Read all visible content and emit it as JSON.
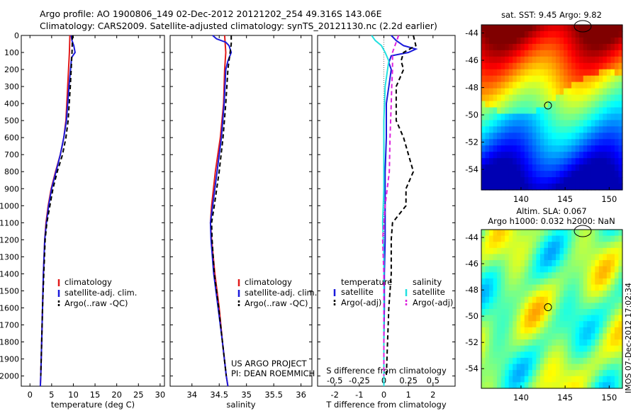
{
  "header": {
    "line1": "Argo profile: AO 1900806_149 02-Dec-2012 20121202_254 49.316S 143.06E",
    "line2": "Climatology: CARS2009. Satellite-adjusted climatology: synTS_20121130.nc (2.2d earlier)"
  },
  "credit": {
    "line1": "US ARGO PROJECT",
    "line2": "PI: DEAN ROEMMICH"
  },
  "side_stamp": "IMOS 07-Dec-2012 17:02:34",
  "colors": {
    "climatology": "#e11a1a",
    "satellite": "#1a1adb",
    "argo": "#000000",
    "satellite_salinity": "#22e0e0",
    "argo_salinity": "#dd22dd"
  },
  "chart_data": [
    {
      "type": "line",
      "xlabel": "temperature (deg C)",
      "ylabel": "",
      "xlim": [
        -2,
        31
      ],
      "ylim": [
        2060,
        0
      ],
      "xticks": [
        "0",
        "5",
        "10",
        "15",
        "20",
        "25",
        "30"
      ],
      "yticks": [
        "0",
        "100",
        "200",
        "300",
        "400",
        "500",
        "600",
        "700",
        "800",
        "900",
        "1000",
        "1100",
        "1200",
        "1300",
        "1400",
        "1500",
        "1600",
        "1700",
        "1800",
        "1900",
        "2000"
      ],
      "legend": [
        "climatology",
        "satellite-adj. clim.",
        "Argo(..raw -QC)"
      ],
      "legend_position": "lower-right",
      "series": [
        {
          "name": "climatology",
          "color": "#e11a1a",
          "style": "solid",
          "depth": [
            0,
            100,
            300,
            500,
            600,
            700,
            800,
            900,
            1000,
            1100,
            1200,
            1400,
            1600,
            1800,
            2000,
            2060
          ],
          "values": [
            9.2,
            9.1,
            8.7,
            8.3,
            7.8,
            7.0,
            5.9,
            4.9,
            4.2,
            3.7,
            3.4,
            3.1,
            2.9,
            2.7,
            2.5,
            2.4
          ]
        },
        {
          "name": "satellite-adj. clim.",
          "color": "#1a1adb",
          "style": "solid",
          "depth": [
            0,
            30,
            60,
            100,
            130,
            300,
            500,
            600,
            700,
            800,
            900,
            1000,
            1100,
            1200,
            1400,
            1600,
            1800,
            2000,
            2060
          ],
          "values": [
            9.5,
            9.7,
            10.1,
            10.4,
            9.6,
            9.0,
            8.4,
            7.8,
            7.0,
            6.0,
            5.0,
            4.3,
            3.8,
            3.4,
            3.1,
            2.9,
            2.7,
            2.5,
            2.4
          ]
        },
        {
          "name": "Argo(..raw -QC)",
          "color": "#000000",
          "style": "dashed",
          "depth": [
            0,
            100,
            300,
            500,
            600,
            700,
            800,
            900,
            1000,
            1100,
            1200,
            1400,
            1600,
            1800,
            2000
          ],
          "values": [
            9.8,
            9.7,
            9.3,
            8.8,
            8.3,
            7.5,
            6.3,
            5.3,
            4.6,
            3.9,
            3.5,
            3.2,
            2.9,
            2.7,
            2.5
          ]
        }
      ]
    },
    {
      "type": "line",
      "xlabel": "salinity",
      "ylabel": "",
      "xlim": [
        33.6,
        36.2
      ],
      "ylim": [
        2060,
        0
      ],
      "xticks": [
        "34",
        "34.5",
        "35",
        "35.5",
        "36"
      ],
      "legend": [
        "climatology",
        "satellite-adj. clim.",
        "Argo(..raw -QC)"
      ],
      "legend_position": "lower-right",
      "series": [
        {
          "name": "climatology",
          "color": "#e11a1a",
          "style": "solid",
          "depth": [
            0,
            100,
            200,
            400,
            600,
            800,
            1000,
            1100,
            1200,
            1400,
            1600,
            1800,
            2000,
            2060
          ],
          "values": [
            34.6,
            34.62,
            34.6,
            34.58,
            34.52,
            34.43,
            34.36,
            34.34,
            34.36,
            34.42,
            34.5,
            34.56,
            34.63,
            34.66
          ]
        },
        {
          "name": "satellite-adj. clim.",
          "color": "#1a1adb",
          "style": "solid",
          "depth": [
            0,
            20,
            40,
            60,
            100,
            150,
            200,
            400,
            600,
            800,
            1000,
            1100,
            1200,
            1400,
            1600,
            1800,
            2000,
            2060
          ],
          "values": [
            34.38,
            34.45,
            34.62,
            34.68,
            34.72,
            34.66,
            34.62,
            34.59,
            34.54,
            34.46,
            34.38,
            34.34,
            34.35,
            34.4,
            34.48,
            34.56,
            34.63,
            34.66
          ]
        },
        {
          "name": "Argo(..raw -QC)",
          "color": "#000000",
          "style": "dashed",
          "depth": [
            0,
            50,
            100,
            200,
            400,
            600,
            800,
            1000,
            1100,
            1200,
            1400,
            1600,
            1800,
            2000
          ],
          "values": [
            34.72,
            34.72,
            34.7,
            34.66,
            34.62,
            34.57,
            34.5,
            34.41,
            34.36,
            34.37,
            34.41,
            34.49,
            34.56,
            34.63
          ]
        }
      ]
    },
    {
      "type": "line",
      "xlabel": "T difference from climatology",
      "xlabel_top": "S difference from climatology",
      "xlim": [
        -2.7,
        2.9
      ],
      "ylim": [
        2060,
        0
      ],
      "xticks": [
        "-2",
        "-1",
        "0",
        "1",
        "2"
      ],
      "xticks_top": [
        "-0.5",
        "-0.25",
        "0",
        "0.25",
        "0.5"
      ],
      "legend_titles": [
        "temperature",
        "salinity"
      ],
      "legend": [
        "satellite",
        "Argo(-adj)",
        "satellite",
        "Argo(-adj)"
      ],
      "legend_position": "lower-center",
      "series": [
        {
          "name": "satellite",
          "group": "temperature",
          "color": "#1a1adb",
          "style": "solid",
          "depth": [
            0,
            30,
            60,
            80,
            100,
            120,
            160,
            200,
            300,
            400,
            600,
            800,
            1000,
            1200,
            1400,
            1600,
            1800,
            2000,
            2060
          ],
          "values": [
            0.3,
            0.5,
            0.8,
            1.3,
            1.0,
            0.3,
            0.2,
            0.3,
            0.2,
            0.1,
            0.1,
            0.05,
            0.05,
            0.05,
            0.02,
            0.02,
            0.0,
            0.0,
            0.0
          ]
        },
        {
          "name": "Argo(-adj)",
          "group": "temperature",
          "color": "#000000",
          "style": "dashed",
          "depth": [
            0,
            60,
            100,
            150,
            200,
            300,
            500,
            600,
            700,
            800,
            900,
            1000,
            1100,
            1200,
            1400,
            1600,
            1800,
            2000
          ],
          "values": [
            1.2,
            1.3,
            0.8,
            0.7,
            0.8,
            0.5,
            0.5,
            0.8,
            1.0,
            1.2,
            0.9,
            0.9,
            0.35,
            0.3,
            0.3,
            0.2,
            0.15,
            0.1
          ]
        },
        {
          "name": "satellite",
          "group": "salinity",
          "color": "#22e0e0",
          "style": "solid",
          "depth": [
            0,
            30,
            60,
            100,
            150,
            200,
            300,
            500,
            700,
            900,
            1100,
            1300,
            1500,
            1700,
            1900,
            2060
          ],
          "values": [
            -0.5,
            -0.35,
            -0.1,
            0.05,
            0.2,
            0.15,
            0.05,
            0.0,
            0.0,
            0.0,
            -0.05,
            0.0,
            0.0,
            0.0,
            0.0,
            0.0
          ]
        },
        {
          "name": "Argo(-adj)",
          "group": "salinity",
          "color": "#dd22dd",
          "style": "dashed",
          "depth": [
            0,
            100,
            200,
            300,
            400,
            600,
            800,
            1000,
            1200,
            1400,
            1600,
            1800,
            2000
          ],
          "values": [
            0.6,
            0.35,
            0.35,
            0.32,
            0.3,
            0.25,
            0.22,
            0.05,
            -0.05,
            0.0,
            0.0,
            0.0,
            0.0
          ]
        }
      ]
    },
    {
      "type": "heatmap",
      "title": "sat. SST: 9.45 Argo: 9.82",
      "xticks": [
        "140",
        "145",
        "150"
      ],
      "yticks": [
        "-44",
        "-46",
        "-48",
        "-50",
        "-52",
        "-54"
      ],
      "xlim": [
        135.5,
        151.5
      ],
      "ylim": [
        -55.5,
        -43.4
      ],
      "marker": {
        "lon": 143.06,
        "lat": -49.316
      }
    },
    {
      "type": "heatmap",
      "title": "Altim. SLA: 0.067",
      "subtitle": "Argo h1000: 0.032 h2000: NaN",
      "xticks": [
        "140",
        "145",
        "150"
      ],
      "yticks": [
        "-44",
        "-46",
        "-48",
        "-50",
        "-52",
        "-54"
      ],
      "xlim": [
        135.5,
        151.5
      ],
      "ylim": [
        -55.5,
        -43.4
      ],
      "marker": {
        "lon": 143.06,
        "lat": -49.316
      }
    }
  ]
}
